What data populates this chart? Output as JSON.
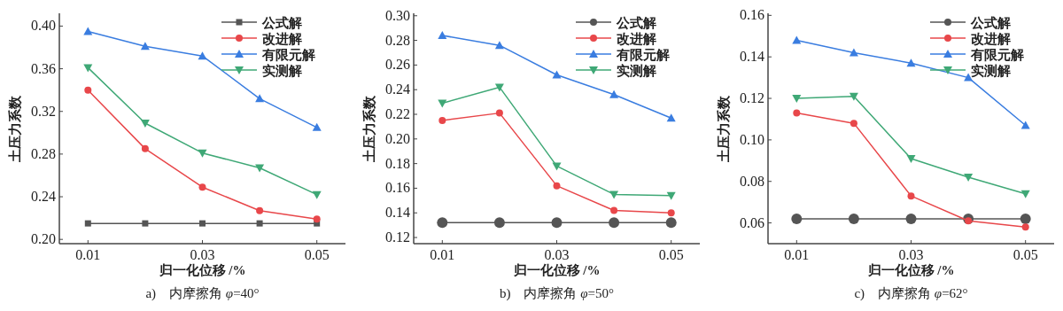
{
  "chart_data": [
    {
      "type": "line",
      "title": "a)　内摩擦角 *φ*=40°",
      "xlabel": "归一化位移 /%",
      "ylabel": "土压力系数",
      "x": [
        0.01,
        0.02,
        0.03,
        0.04,
        0.05
      ],
      "xlim": [
        0.005,
        0.055
      ],
      "xticks": [
        0.01,
        0.03,
        0.05
      ],
      "ylim": [
        0.196,
        0.412
      ],
      "yticks": [
        {
          "value": 0.2,
          "label": "0.20"
        },
        {
          "value": 0.24,
          "label": "0.24"
        },
        {
          "value": 0.28,
          "label": "0.28"
        },
        {
          "value": 0.32,
          "label": "0.32"
        },
        {
          "value": 0.36,
          "label": "0.36"
        },
        {
          "value": 0.4,
          "label": "0.40"
        }
      ],
      "legend": "top right",
      "grid": false,
      "series": [
        {
          "name": "公式解",
          "color": "#555555",
          "marker": "square",
          "values": [
            0.215,
            0.215,
            0.215,
            0.215,
            0.215
          ]
        },
        {
          "name": "改进解",
          "color": "#e8474a",
          "marker": "circle",
          "values": [
            0.34,
            0.285,
            0.249,
            0.227,
            0.219
          ]
        },
        {
          "name": "有限元解",
          "color": "#3a7de0",
          "marker": "triangle",
          "values": [
            0.395,
            0.381,
            0.372,
            0.332,
            0.305
          ]
        },
        {
          "name": "实测解",
          "color": "#3fa876",
          "marker": "triangle-down",
          "values": [
            0.361,
            0.309,
            0.281,
            0.267,
            0.242
          ]
        }
      ]
    },
    {
      "type": "line",
      "title": "b)　内摩擦角 *φ*=50°",
      "xlabel": "归一化位移 /%",
      "ylabel": "土压力系数",
      "x": [
        0.01,
        0.02,
        0.03,
        0.04,
        0.05
      ],
      "xlim": [
        0.005,
        0.055
      ],
      "xticks": [
        0.01,
        0.03,
        0.05
      ],
      "ylim": [
        0.115,
        0.302
      ],
      "yticks": [
        {
          "value": 0.12,
          "label": "0.12"
        },
        {
          "value": 0.14,
          "label": "0.14"
        },
        {
          "value": 0.16,
          "label": "0.16"
        },
        {
          "value": 0.18,
          "label": "0.18"
        },
        {
          "value": 0.2,
          "label": "0.20"
        },
        {
          "value": 0.22,
          "label": "0.22"
        },
        {
          "value": 0.24,
          "label": "0.24"
        },
        {
          "value": 0.26,
          "label": "0.26"
        },
        {
          "value": 0.28,
          "label": "0.28"
        },
        {
          "value": 0.3,
          "label": "0.30"
        }
      ],
      "legend": "top right",
      "grid": false,
      "series": [
        {
          "name": "公式解",
          "color": "#555555",
          "marker": "circle",
          "values": [
            0.132,
            0.132,
            0.132,
            0.132,
            0.132
          ]
        },
        {
          "name": "改进解",
          "color": "#e8474a",
          "marker": "circle",
          "values": [
            0.215,
            0.221,
            0.162,
            0.142,
            0.14
          ]
        },
        {
          "name": "有限元解",
          "color": "#3a7de0",
          "marker": "triangle",
          "values": [
            0.284,
            0.276,
            0.252,
            0.236,
            0.217
          ]
        },
        {
          "name": "实测解",
          "color": "#3fa876",
          "marker": "triangle-down",
          "values": [
            0.229,
            0.242,
            0.178,
            0.155,
            0.154
          ]
        }
      ]
    },
    {
      "type": "line",
      "title": "c)　内摩擦角 *φ*=62°",
      "xlabel": "归一化位移 /%",
      "ylabel": "土压力系数",
      "x": [
        0.01,
        0.02,
        0.03,
        0.04,
        0.05
      ],
      "xlim": [
        0.005,
        0.055
      ],
      "xticks": [
        0.01,
        0.03,
        0.05
      ],
      "ylim": [
        0.05,
        0.161
      ],
      "yticks": [
        {
          "value": 0.06,
          "label": "0.06"
        },
        {
          "value": 0.08,
          "label": "0.08"
        },
        {
          "value": 0.1,
          "label": "0.10"
        },
        {
          "value": 0.12,
          "label": "0.12"
        },
        {
          "value": 0.14,
          "label": "0.14"
        },
        {
          "value": 0.16,
          "label": "0.16"
        }
      ],
      "legend": "top right",
      "grid": false,
      "series": [
        {
          "name": "公式解",
          "color": "#555555",
          "marker": "circle",
          "values": [
            0.062,
            0.062,
            0.062,
            0.062,
            0.062
          ]
        },
        {
          "name": "改进解",
          "color": "#e8474a",
          "marker": "circle",
          "values": [
            0.113,
            0.108,
            0.073,
            0.061,
            0.058
          ]
        },
        {
          "name": "有限元解",
          "color": "#3a7de0",
          "marker": "triangle",
          "values": [
            0.148,
            0.142,
            0.137,
            0.13,
            0.107
          ]
        },
        {
          "name": "实测解",
          "color": "#3fa876",
          "marker": "triangle-down",
          "values": [
            0.12,
            0.121,
            0.091,
            0.082,
            0.074
          ]
        }
      ]
    }
  ]
}
